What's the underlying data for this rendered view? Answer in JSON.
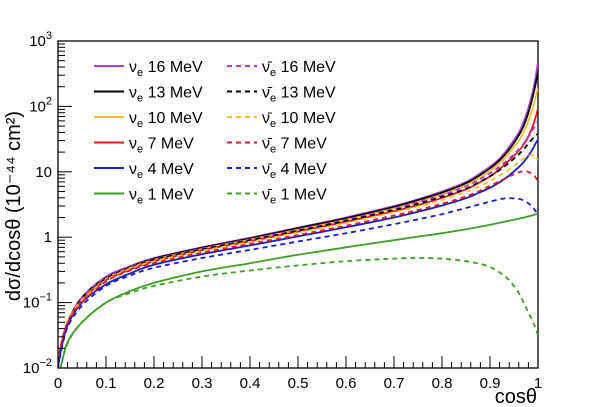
{
  "chart_data": {
    "type": "line",
    "xlabel": "cosθ",
    "ylabel": "dσ/dcosθ (10⁻⁴⁴ cm²)",
    "xlim": [
      0,
      1
    ],
    "ylim": [
      0.01,
      1000
    ],
    "yscale": "log",
    "grid": false,
    "legend_position": "top-left",
    "x_ticks": [
      "0",
      "0.1",
      "0.2",
      "0.3",
      "0.4",
      "0.5",
      "0.6",
      "0.7",
      "0.8",
      "0.9",
      "1"
    ],
    "y_ticks": [
      {
        "value": 0.01,
        "base": "10",
        "exp": "−2",
        "plain": ""
      },
      {
        "value": 0.1,
        "base": "10",
        "exp": "−1",
        "plain": ""
      },
      {
        "value": 1,
        "base": "",
        "exp": "",
        "plain": "1"
      },
      {
        "value": 10,
        "base": "",
        "exp": "",
        "plain": "10"
      },
      {
        "value": 100,
        "base": "10",
        "exp": "2",
        "plain": ""
      },
      {
        "value": 1000,
        "base": "10",
        "exp": "3",
        "plain": ""
      }
    ],
    "x": [
      0,
      0.005,
      0.02,
      0.05,
      0.1,
      0.15,
      0.2,
      0.3,
      0.4,
      0.5,
      0.6,
      0.7,
      0.75,
      0.8,
      0.85,
      0.88,
      0.9,
      0.92,
      0.94,
      0.96,
      0.97,
      0.98,
      0.99,
      0.995,
      1.0
    ],
    "series": [
      {
        "name": "νe 16 MeV",
        "flavor": "ν",
        "energy": "16 MeV",
        "color": "#b13edc",
        "dash": false,
        "values": [
          0.005,
          0.02,
          0.05,
          0.12,
          0.25,
          0.36,
          0.48,
          0.7,
          0.98,
          1.4,
          2.0,
          3.0,
          3.8,
          5.0,
          7.0,
          9.5,
          12.0,
          16.0,
          24.0,
          40.0,
          58.0,
          95.0,
          180.0,
          280.0,
          480.0
        ]
      },
      {
        "name": "νe 13 MeV",
        "flavor": "ν",
        "energy": "13 MeV",
        "color": "#000000",
        "dash": false,
        "values": [
          0.005,
          0.02,
          0.05,
          0.12,
          0.24,
          0.35,
          0.47,
          0.69,
          0.96,
          1.37,
          1.95,
          2.9,
          3.7,
          4.8,
          6.7,
          9.0,
          11.3,
          15.0,
          22.0,
          36.0,
          50.0,
          80.0,
          150.0,
          220.0,
          330.0
        ]
      },
      {
        "name": "νe 10 MeV",
        "flavor": "ν",
        "energy": "10 MeV",
        "color": "#f5c12a",
        "dash": false,
        "values": [
          0.005,
          0.02,
          0.05,
          0.11,
          0.23,
          0.34,
          0.45,
          0.66,
          0.92,
          1.3,
          1.85,
          2.75,
          3.45,
          4.5,
          6.2,
          8.2,
          10.2,
          13.5,
          19.5,
          30.0,
          40.0,
          60.0,
          100.0,
          140.0,
          190.0
        ]
      },
      {
        "name": "νe 7 MeV",
        "flavor": "ν",
        "energy": "7 MeV",
        "color": "#e3191c",
        "dash": false,
        "values": [
          0.005,
          0.02,
          0.05,
          0.11,
          0.22,
          0.32,
          0.43,
          0.63,
          0.87,
          1.22,
          1.72,
          2.5,
          3.1,
          4.0,
          5.4,
          7.0,
          8.5,
          11.0,
          15.0,
          21.0,
          26.0,
          35.0,
          52.0,
          68.0,
          92.0
        ]
      },
      {
        "name": "νe 4 MeV",
        "flavor": "ν",
        "energy": "4 MeV",
        "color": "#1a1dc9",
        "dash": false,
        "values": [
          0.004,
          0.017,
          0.045,
          0.1,
          0.19,
          0.28,
          0.38,
          0.55,
          0.75,
          1.03,
          1.42,
          2.0,
          2.45,
          3.05,
          3.95,
          4.9,
          5.7,
          6.9,
          8.8,
          11.8,
          14.0,
          17.5,
          23.0,
          27.0,
          31.0
        ]
      },
      {
        "name": "νe 1 MeV",
        "flavor": "ν",
        "energy": "1 MeV",
        "color": "#3f9e26",
        "dash": false,
        "values": [
          0.002,
          0.008,
          0.025,
          0.05,
          0.1,
          0.15,
          0.2,
          0.3,
          0.4,
          0.54,
          0.7,
          0.9,
          1.02,
          1.15,
          1.32,
          1.45,
          1.55,
          1.66,
          1.78,
          1.92,
          2.0,
          2.08,
          2.18,
          2.23,
          2.28
        ]
      },
      {
        "name": "ν̄e 16 MeV",
        "flavor": "ν̄",
        "energy": "16 MeV",
        "color": "#b13edc",
        "dash": true,
        "values": [
          0.005,
          0.02,
          0.05,
          0.12,
          0.24,
          0.35,
          0.46,
          0.67,
          0.93,
          1.3,
          1.85,
          2.75,
          3.45,
          4.4,
          6.0,
          7.8,
          9.5,
          12.0,
          16.0,
          22.0,
          27.0,
          34.0,
          45.0,
          52.0,
          60.0
        ]
      },
      {
        "name": "ν̄e 13 MeV",
        "flavor": "ν̄",
        "energy": "13 MeV",
        "color": "#000000",
        "dash": true,
        "values": [
          0.005,
          0.02,
          0.05,
          0.11,
          0.23,
          0.34,
          0.45,
          0.65,
          0.9,
          1.25,
          1.78,
          2.6,
          3.25,
          4.15,
          5.5,
          7.1,
          8.5,
          10.6,
          13.8,
          18.5,
          22.0,
          27.0,
          33.0,
          36.0,
          38.0
        ]
      },
      {
        "name": "ν̄e 10 MeV",
        "flavor": "ν̄",
        "energy": "10 MeV",
        "color": "#f5c12a",
        "dash": true,
        "values": [
          0.005,
          0.02,
          0.05,
          0.11,
          0.22,
          0.33,
          0.43,
          0.62,
          0.85,
          1.18,
          1.65,
          2.4,
          2.95,
          3.7,
          4.9,
          6.1,
          7.2,
          8.8,
          11.0,
          14.0,
          16.0,
          17.5,
          18.0,
          17.0,
          15.0
        ]
      },
      {
        "name": "ν̄e 7 MeV",
        "flavor": "ν̄",
        "energy": "7 MeV",
        "color": "#e3191c",
        "dash": true,
        "values": [
          0.004,
          0.018,
          0.048,
          0.1,
          0.21,
          0.31,
          0.4,
          0.58,
          0.79,
          1.08,
          1.5,
          2.15,
          2.6,
          3.25,
          4.2,
          5.2,
          6.1,
          7.2,
          8.5,
          9.8,
          10.2,
          10.0,
          9.0,
          8.2,
          7.2
        ]
      },
      {
        "name": "ν̄e 4 MeV",
        "flavor": "ν̄",
        "energy": "4 MeV",
        "color": "#1a1dc9",
        "dash": true,
        "values": [
          0.004,
          0.016,
          0.042,
          0.09,
          0.18,
          0.26,
          0.34,
          0.48,
          0.64,
          0.86,
          1.15,
          1.58,
          1.88,
          2.25,
          2.8,
          3.2,
          3.5,
          3.8,
          3.95,
          3.85,
          3.65,
          3.3,
          2.8,
          2.5,
          2.3
        ]
      },
      {
        "name": "ν̄e 1 MeV",
        "flavor": "ν̄",
        "energy": "1 MeV",
        "color": "#3f9e26",
        "dash": true,
        "values": [
          0.002,
          0.008,
          0.024,
          0.05,
          0.1,
          0.14,
          0.18,
          0.25,
          0.31,
          0.37,
          0.43,
          0.47,
          0.48,
          0.47,
          0.43,
          0.39,
          0.35,
          0.29,
          0.22,
          0.14,
          0.1,
          0.07,
          0.05,
          0.04,
          0.032
        ]
      }
    ]
  }
}
